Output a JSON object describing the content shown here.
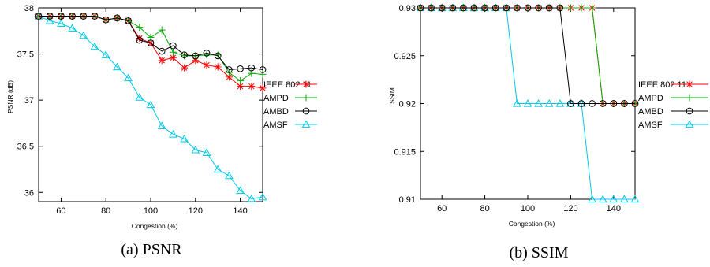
{
  "figure_captions": [
    "(a) PSNR",
    "(b) SSIM"
  ],
  "chart_data": [
    {
      "type": "line",
      "caption": "(a) PSNR",
      "xlabel": "Congestion (%)",
      "ylabel": "PSNR (dB)",
      "xlim": [
        50,
        150
      ],
      "ylim": [
        35.9,
        38
      ],
      "xticks": [
        60,
        80,
        100,
        120,
        140
      ],
      "yticks": [
        36,
        36.5,
        37,
        37.5,
        38
      ],
      "legend_position": "right",
      "x": [
        50,
        55,
        60,
        65,
        70,
        75,
        80,
        85,
        90,
        95,
        100,
        105,
        110,
        115,
        120,
        125,
        130,
        135,
        140,
        145,
        150
      ],
      "series": [
        {
          "name": "IEEE 802.11",
          "color": "#ff0000",
          "marker": "star",
          "values": [
            37.91,
            37.91,
            37.91,
            37.91,
            37.91,
            37.91,
            37.87,
            37.89,
            37.86,
            37.67,
            37.62,
            37.43,
            37.46,
            37.35,
            37.43,
            37.38,
            37.36,
            37.25,
            37.15,
            37.15,
            37.13
          ]
        },
        {
          "name": "AMPD",
          "color": "#00b000",
          "marker": "plus",
          "values": [
            37.91,
            37.91,
            37.91,
            37.91,
            37.91,
            37.91,
            37.87,
            37.89,
            37.86,
            37.79,
            37.68,
            37.76,
            37.52,
            37.48,
            37.48,
            37.49,
            37.49,
            37.3,
            37.21,
            37.29,
            37.28
          ]
        },
        {
          "name": "AMBD",
          "color": "#000000",
          "marker": "circle",
          "values": [
            37.91,
            37.91,
            37.91,
            37.91,
            37.91,
            37.91,
            37.87,
            37.89,
            37.86,
            37.65,
            37.62,
            37.53,
            37.59,
            37.49,
            37.48,
            37.51,
            37.48,
            37.33,
            37.34,
            37.35,
            37.33
          ]
        },
        {
          "name": "AMSF",
          "color": "#00c8e8",
          "marker": "triangle",
          "values": [
            37.91,
            37.86,
            37.83,
            37.78,
            37.7,
            37.58,
            37.49,
            37.36,
            37.24,
            37.03,
            36.95,
            36.72,
            36.63,
            36.58,
            36.46,
            36.43,
            36.25,
            36.18,
            36.02,
            35.93,
            35.95
          ]
        }
      ]
    },
    {
      "type": "line",
      "caption": "(b) SSIM",
      "xlabel": "Congestion (%)",
      "ylabel": "SSIM",
      "xlim": [
        50,
        150
      ],
      "ylim": [
        0.91,
        0.93
      ],
      "xticks": [
        60,
        80,
        100,
        120,
        140
      ],
      "yticks": [
        0.91,
        0.915,
        0.92,
        0.925,
        0.93
      ],
      "legend_position": "right",
      "x": [
        50,
        55,
        60,
        65,
        70,
        75,
        80,
        85,
        90,
        95,
        100,
        105,
        110,
        115,
        120,
        125,
        130,
        135,
        140,
        145,
        150
      ],
      "series": [
        {
          "name": "IEEE 802.11",
          "color": "#ff0000",
          "marker": "star",
          "values": [
            0.93,
            0.93,
            0.93,
            0.93,
            0.93,
            0.93,
            0.93,
            0.93,
            0.93,
            0.93,
            0.93,
            0.93,
            0.93,
            0.93,
            0.93,
            0.93,
            0.93,
            0.92,
            0.92,
            0.92,
            0.92
          ]
        },
        {
          "name": "AMPD",
          "color": "#00b000",
          "marker": "plus",
          "values": [
            0.93,
            0.93,
            0.93,
            0.93,
            0.93,
            0.93,
            0.93,
            0.93,
            0.93,
            0.93,
            0.93,
            0.93,
            0.93,
            0.93,
            0.93,
            0.93,
            0.93,
            0.92,
            0.92,
            0.92,
            0.92
          ]
        },
        {
          "name": "AMBD",
          "color": "#000000",
          "marker": "circle",
          "values": [
            0.93,
            0.93,
            0.93,
            0.93,
            0.93,
            0.93,
            0.93,
            0.93,
            0.93,
            0.93,
            0.93,
            0.93,
            0.93,
            0.93,
            0.92,
            0.92,
            0.92,
            0.92,
            0.92,
            0.92,
            0.92
          ]
        },
        {
          "name": "AMSF",
          "color": "#00c8e8",
          "marker": "triangle",
          "values": [
            0.93,
            0.93,
            0.93,
            0.93,
            0.93,
            0.93,
            0.93,
            0.93,
            0.93,
            0.92,
            0.92,
            0.92,
            0.92,
            0.92,
            0.92,
            0.92,
            0.91,
            0.91,
            0.91,
            0.91,
            0.91
          ]
        }
      ]
    }
  ]
}
